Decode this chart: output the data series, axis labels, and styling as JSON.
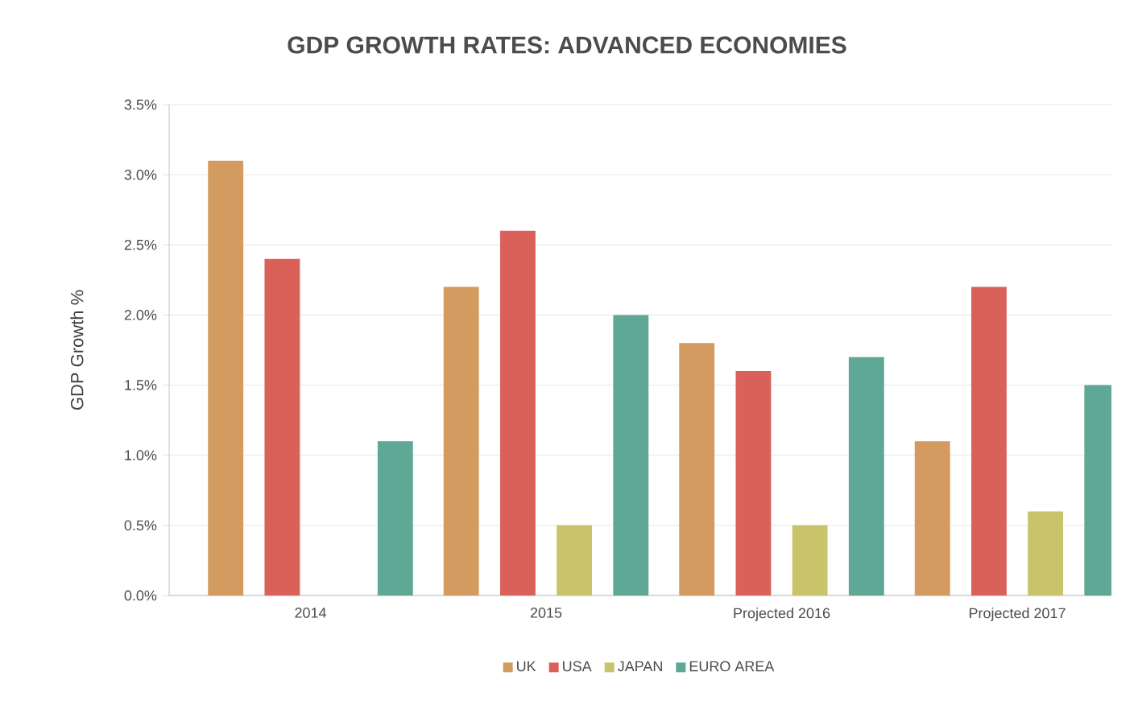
{
  "chart_data": {
    "type": "bar",
    "title": "GDP GROWTH RATES: ADVANCED ECONOMIES",
    "ylabel": "GDP Growth %",
    "categories": [
      "2014",
      "2015",
      "Projected 2016",
      "Projected 2017"
    ],
    "series": [
      {
        "name": "UK",
        "color": "#d39b5f",
        "values": [
          3.1,
          2.2,
          1.8,
          1.1
        ]
      },
      {
        "name": "USA",
        "color": "#d9615a",
        "values": [
          2.4,
          2.6,
          1.6,
          2.2
        ]
      },
      {
        "name": "JAPAN",
        "color": "#c9c46a",
        "values": [
          null,
          0.5,
          0.5,
          0.6
        ]
      },
      {
        "name": "EURO AREA",
        "color": "#5fa896",
        "values": [
          1.1,
          2.0,
          1.7,
          1.5
        ]
      }
    ],
    "ylim": [
      0,
      3.5
    ],
    "yticks": [
      {
        "value": 0,
        "label": "0.0%"
      },
      {
        "value": 0.5,
        "label": "0.5%"
      },
      {
        "value": 1,
        "label": "1.0%"
      },
      {
        "value": 1.5,
        "label": "1.5%"
      },
      {
        "value": 2,
        "label": "2.0%"
      },
      {
        "value": 2.5,
        "label": "2.5%"
      },
      {
        "value": 3,
        "label": "3.0%"
      },
      {
        "value": 3.5,
        "label": "3.5%"
      }
    ],
    "grid": "y",
    "legend": "bottom"
  }
}
